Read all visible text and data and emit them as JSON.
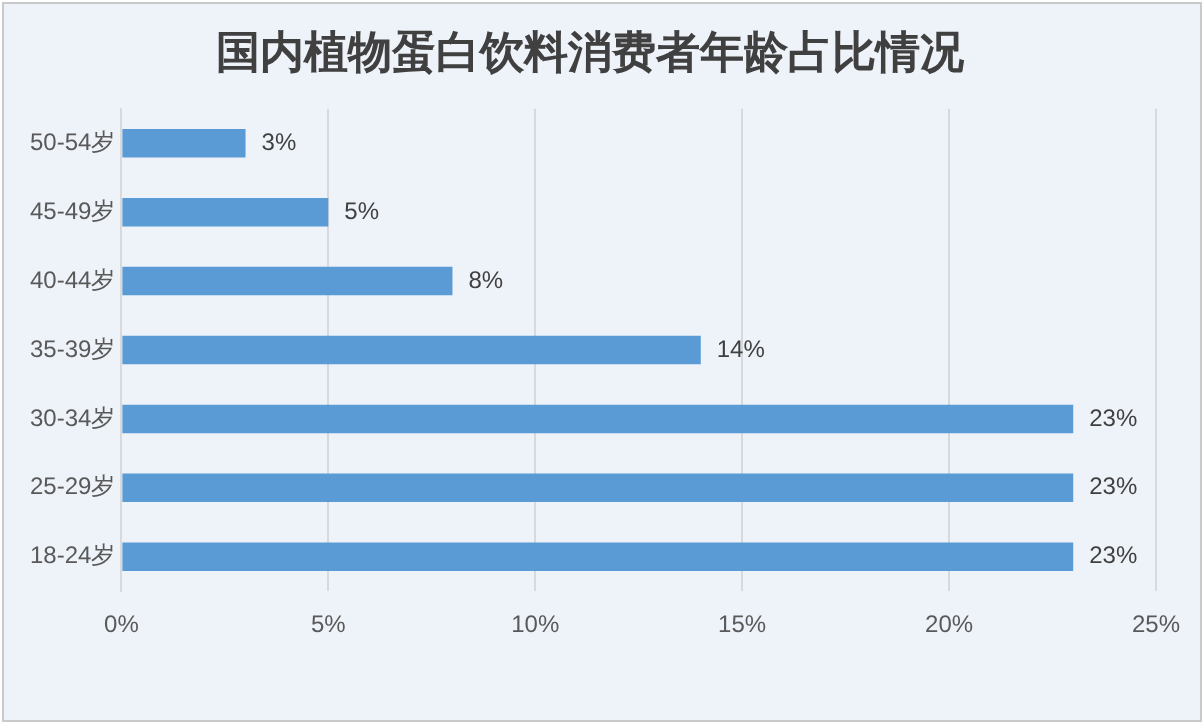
{
  "chart_data": {
    "type": "bar",
    "orientation": "horizontal",
    "title": "国内植物蛋白饮料消费者年龄占比情况",
    "categories": [
      "50-54岁",
      "45-49岁",
      "40-44岁",
      "35-39岁",
      "30-34岁",
      "25-29岁",
      "18-24岁"
    ],
    "values": [
      3,
      5,
      8,
      14,
      23,
      23,
      23
    ],
    "color": "#5b9bd5",
    "value_labels": [
      "3%",
      "5%",
      "8%",
      "14%",
      "23%",
      "23%",
      "23%"
    ],
    "xlim": [
      0,
      25
    ],
    "xticks": [
      {
        "value": 0,
        "label": "0%"
      },
      {
        "value": 5,
        "label": "5%"
      },
      {
        "value": 10,
        "label": "10%"
      },
      {
        "value": 15,
        "label": "15%"
      },
      {
        "value": 20,
        "label": "20%"
      },
      {
        "value": 25,
        "label": "25%"
      }
    ],
    "grid": "x",
    "legend": false
  }
}
